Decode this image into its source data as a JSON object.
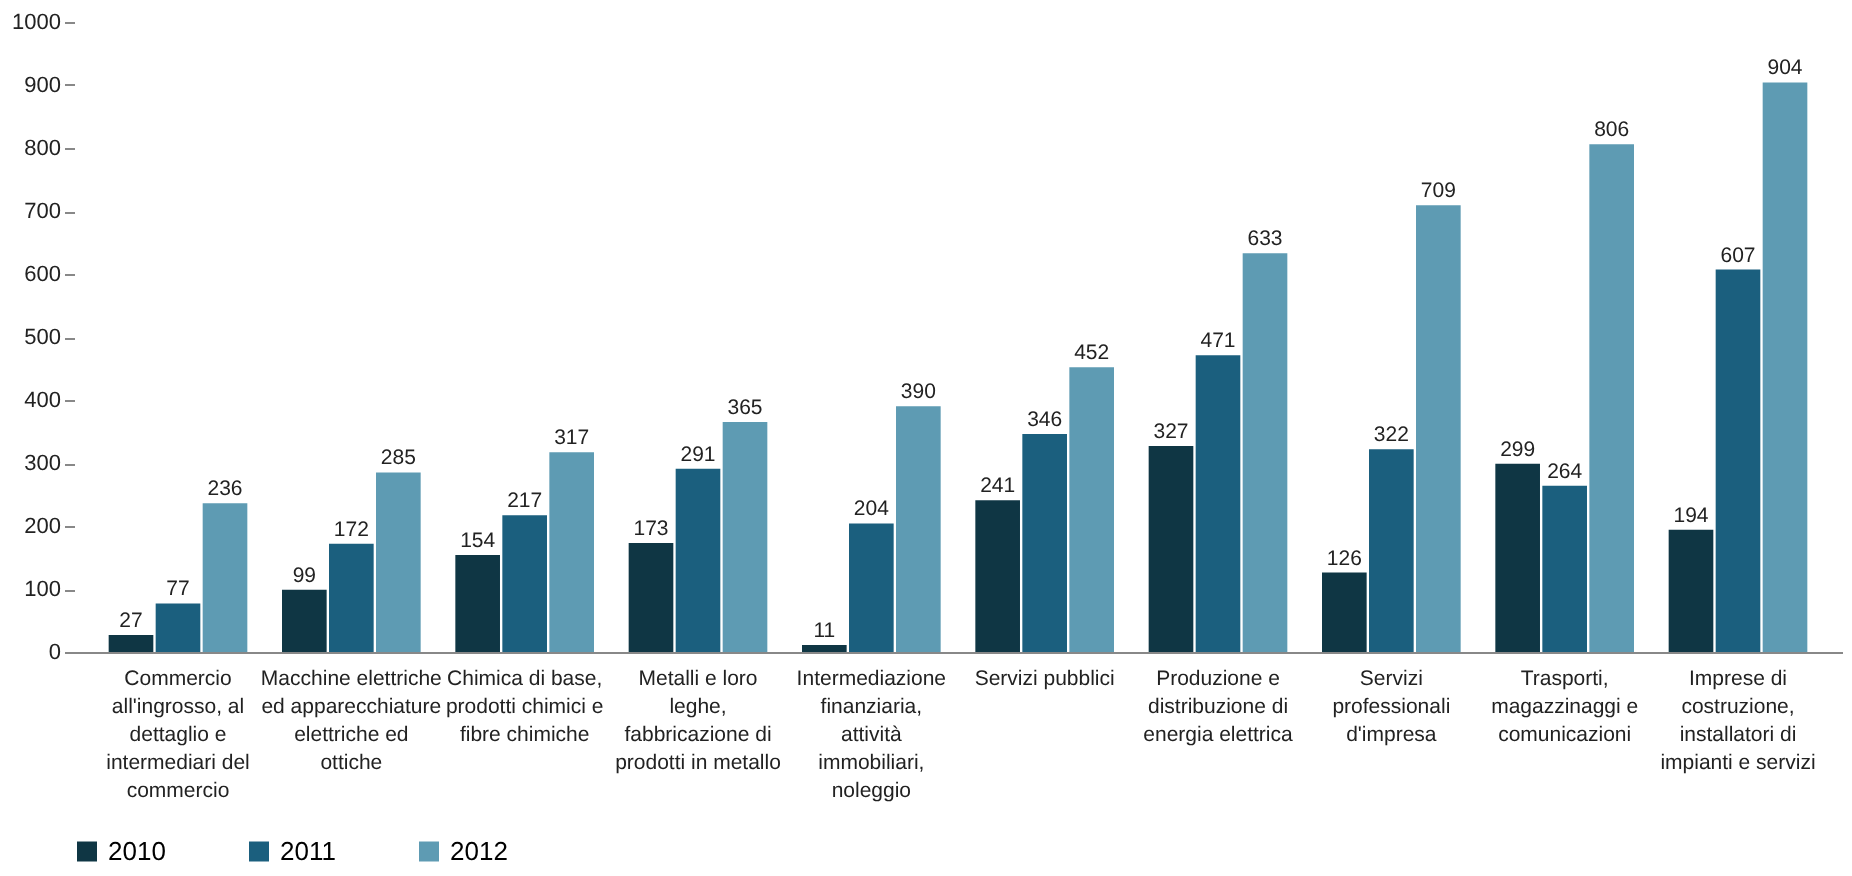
{
  "chart_data": {
    "type": "bar",
    "categories": [
      "Commercio all'ingrosso, al dettaglio e intermediari del commercio",
      "Macchine elettriche ed apparecchiature elettriche ed ottiche",
      "Chimica di base, prodotti chimici e fibre chimiche",
      "Metalli e loro leghe, fabbricazione di prodotti in metallo",
      "Intermediazione finanziaria, attività immobiliari, noleggio",
      "Servizi pubblici",
      "Produzione e distribuzione di energia elettrica",
      "Servizi professionali d'impresa",
      "Trasporti, magazzinaggi e comunicazioni",
      "Imprese di costruzione, installatori di impianti e servizi"
    ],
    "series": [
      {
        "name": "2010",
        "color": "#0f3644",
        "values": [
          27,
          99,
          154,
          173,
          11,
          241,
          327,
          126,
          299,
          194
        ]
      },
      {
        "name": "2011",
        "color": "#1b5f7e",
        "values": [
          77,
          172,
          217,
          291,
          204,
          346,
          471,
          322,
          264,
          607
        ]
      },
      {
        "name": "2012",
        "color": "#5e9bb3",
        "values": [
          236,
          285,
          317,
          365,
          390,
          452,
          633,
          709,
          806,
          904
        ]
      }
    ],
    "ylim": [
      0,
      1000
    ],
    "yticks": [
      0,
      100,
      200,
      300,
      400,
      500,
      600,
      700,
      800,
      900,
      1000
    ],
    "data_labels": true,
    "grid": false,
    "legend": "bottom"
  }
}
